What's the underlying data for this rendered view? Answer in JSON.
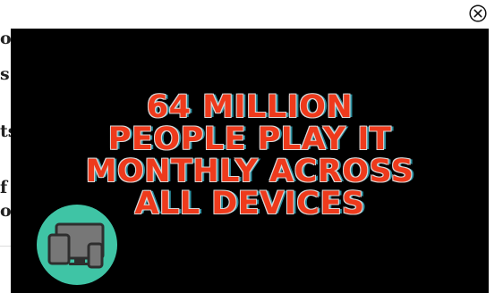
{
  "background": {
    "fragments": [
      "oc",
      "s",
      "ts",
      "f",
      "or"
    ]
  },
  "close_button": {
    "icon": "close-circle-icon"
  },
  "ad": {
    "headline_lines": [
      "64 MILLION",
      "PEOPLE PLAY IT",
      "MONTHLY ACROSS",
      "ALL DEVICES"
    ],
    "badge_icon": "devices-icon",
    "colors": {
      "background": "#000000",
      "text": "#ee3a1c",
      "badge": "#3fc4a5"
    }
  }
}
